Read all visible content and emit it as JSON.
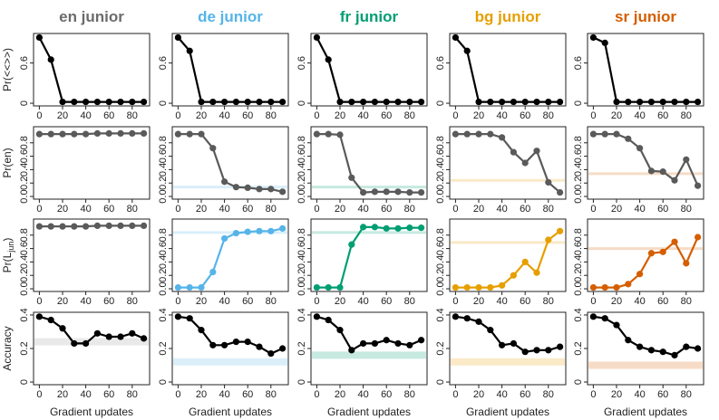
{
  "chart_data": {
    "type": "line",
    "columns": [
      {
        "title": "en junior",
        "color": "#6b6b6b"
      },
      {
        "title": "de junior",
        "color": "#56b4e9"
      },
      {
        "title": "fr junior",
        "color": "#009e73"
      },
      {
        "title": "bg junior",
        "color": "#e69f00"
      },
      {
        "title": "sr junior",
        "color": "#d55e00"
      }
    ],
    "rows": [
      {
        "ylabel": "Pr(<<>>)",
        "ylim": [
          0,
          1
        ],
        "yticks": [
          "0",
          "0.6"
        ],
        "ytick_values": [
          0,
          0.6
        ]
      },
      {
        "ylabel": "Pr(en)",
        "ylim": [
          0,
          1
        ],
        "yticks": [
          "0.0",
          "0.2",
          "0.4",
          "0.6",
          "0.8"
        ],
        "ytick_values": [
          0,
          0.2,
          0.4,
          0.6,
          0.8
        ]
      },
      {
        "ylabel": "Pr(L_jun)",
        "ylabel_main": "Pr(L",
        "ylabel_sub": "jun",
        "ylabel_end": ")",
        "ylim": [
          0,
          1
        ],
        "yticks": [
          "0.0",
          "0.2",
          "0.4",
          "0.6",
          "0.8"
        ],
        "ytick_values": [
          0,
          0.2,
          0.4,
          0.6,
          0.8
        ]
      },
      {
        "ylabel": "Accuracy",
        "ylim": [
          0,
          0.4
        ],
        "yticks": [
          "0",
          "0.2",
          "0.4"
        ],
        "ytick_values": [
          0,
          0.2,
          0.4
        ]
      }
    ],
    "xlabel": "Gradient updates",
    "x": [
      0,
      10,
      20,
      30,
      40,
      50,
      60,
      70,
      80,
      90
    ],
    "xticks": [
      "0",
      "20",
      "40",
      "60",
      "80"
    ],
    "xtick_values": [
      0,
      20,
      40,
      60,
      80
    ],
    "panels": [
      [
        {
          "y": [
            0.98,
            0.65,
            0.02,
            0.02,
            0.02,
            0.02,
            0.02,
            0.02,
            0.02,
            0.02
          ],
          "line": "black",
          "baseline": null
        },
        {
          "y": [
            0.93,
            0.93,
            0.93,
            0.93,
            0.93,
            0.94,
            0.94,
            0.94,
            0.94,
            0.94
          ],
          "line": "grey",
          "baseline": null
        },
        {
          "y": [
            0.93,
            0.93,
            0.93,
            0.93,
            0.93,
            0.94,
            0.94,
            0.94,
            0.94,
            0.94
          ],
          "line": "grey",
          "baseline": null
        },
        {
          "y": [
            0.39,
            0.37,
            0.32,
            0.23,
            0.23,
            0.29,
            0.27,
            0.27,
            0.29,
            0.26
          ],
          "line": "black",
          "baseline": 0.24
        }
      ],
      [
        {
          "y": [
            0.98,
            0.78,
            0.02,
            0.02,
            0.02,
            0.02,
            0.02,
            0.02,
            0.02,
            0.02
          ],
          "line": "black",
          "baseline": null
        },
        {
          "y": [
            0.93,
            0.93,
            0.93,
            0.72,
            0.22,
            0.14,
            0.13,
            0.11,
            0.11,
            0.07
          ],
          "line": "grey",
          "baseline": 0.14
        },
        {
          "y": [
            0.02,
            0.02,
            0.02,
            0.25,
            0.75,
            0.83,
            0.85,
            0.86,
            0.86,
            0.9
          ],
          "line": "series",
          "baseline": 0.84
        },
        {
          "y": [
            0.39,
            0.38,
            0.31,
            0.22,
            0.22,
            0.24,
            0.24,
            0.21,
            0.17,
            0.2
          ],
          "line": "black",
          "baseline": 0.12
        }
      ],
      [
        {
          "y": [
            0.98,
            0.65,
            0.02,
            0.02,
            0.02,
            0.02,
            0.02,
            0.02,
            0.02,
            0.02
          ],
          "line": "black",
          "baseline": null
        },
        {
          "y": [
            0.93,
            0.93,
            0.92,
            0.28,
            0.06,
            0.07,
            0.07,
            0.07,
            0.06,
            0.06
          ],
          "line": "grey",
          "baseline": 0.14
        },
        {
          "y": [
            0.02,
            0.02,
            0.02,
            0.66,
            0.92,
            0.92,
            0.9,
            0.9,
            0.91,
            0.91
          ],
          "line": "series",
          "baseline": 0.84
        },
        {
          "y": [
            0.39,
            0.37,
            0.31,
            0.19,
            0.23,
            0.23,
            0.25,
            0.23,
            0.22,
            0.25
          ],
          "line": "black",
          "baseline": 0.16
        }
      ],
      [
        {
          "y": [
            0.98,
            0.78,
            0.02,
            0.02,
            0.02,
            0.02,
            0.02,
            0.02,
            0.02,
            0.02
          ],
          "line": "black",
          "baseline": null
        },
        {
          "y": [
            0.93,
            0.93,
            0.93,
            0.93,
            0.88,
            0.66,
            0.5,
            0.68,
            0.21,
            0.06
          ],
          "line": "grey",
          "baseline": 0.24
        },
        {
          "y": [
            0.02,
            0.02,
            0.02,
            0.02,
            0.05,
            0.2,
            0.4,
            0.24,
            0.73,
            0.86
          ],
          "line": "series",
          "baseline": 0.69
        },
        {
          "y": [
            0.39,
            0.38,
            0.36,
            0.31,
            0.22,
            0.23,
            0.18,
            0.19,
            0.19,
            0.21
          ],
          "line": "black",
          "baseline": 0.12
        }
      ],
      [
        {
          "y": [
            0.98,
            0.9,
            0.02,
            0.02,
            0.02,
            0.02,
            0.02,
            0.02,
            0.02,
            0.02
          ],
          "line": "black",
          "baseline": null
        },
        {
          "y": [
            0.93,
            0.93,
            0.93,
            0.86,
            0.72,
            0.38,
            0.37,
            0.24,
            0.55,
            0.16
          ],
          "line": "grey",
          "baseline": 0.34
        },
        {
          "y": [
            0.02,
            0.02,
            0.02,
            0.07,
            0.22,
            0.53,
            0.55,
            0.7,
            0.38,
            0.77
          ],
          "line": "series",
          "baseline": 0.6
        },
        {
          "y": [
            0.39,
            0.38,
            0.34,
            0.25,
            0.21,
            0.19,
            0.18,
            0.16,
            0.21,
            0.2
          ],
          "line": "black",
          "baseline": 0.1
        }
      ]
    ]
  }
}
